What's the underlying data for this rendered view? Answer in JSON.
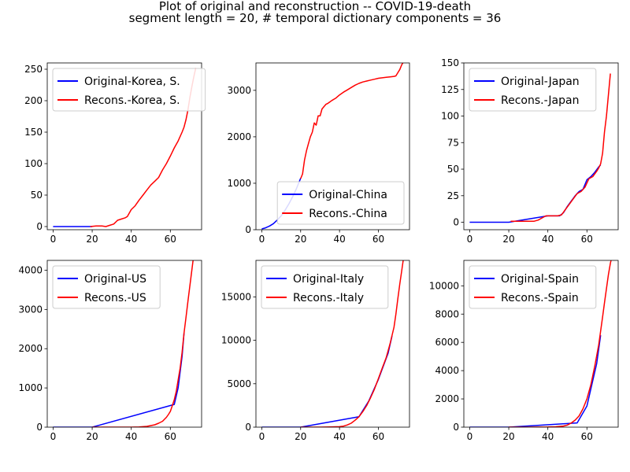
{
  "figure": {
    "title": "Plot of original and reconstruction -- COVID-19-death",
    "subtitle": "segment length = 20, # temporal dictionary components = 36"
  },
  "colors": {
    "original": "#0000ff",
    "reconstruction": "#ff0000"
  },
  "chart_data": [
    {
      "type": "line",
      "country": "Korea, S.",
      "xlim": [
        -3,
        76
      ],
      "ylim": [
        -5,
        260
      ],
      "xticks": [
        0,
        20,
        40,
        60
      ],
      "yticks": [
        0,
        50,
        100,
        150,
        200,
        250
      ],
      "legend_location": "upper-left",
      "series": [
        {
          "name": "Original-Korea, S.",
          "role": "original",
          "x": [
            0,
            5,
            10,
            15,
            20
          ],
          "y": [
            0,
            0,
            0,
            0,
            0
          ]
        },
        {
          "name": "Recons.-Korea, S.",
          "role": "reconstruction",
          "x": [
            19,
            22,
            25,
            27,
            29,
            31,
            33,
            35,
            37,
            38,
            40,
            42,
            44,
            46,
            48,
            50,
            52,
            54,
            56,
            58,
            60,
            62,
            64,
            66,
            67,
            68,
            69,
            70,
            71,
            72,
            73
          ],
          "y": [
            0,
            1,
            1,
            0,
            2,
            4,
            10,
            12,
            14,
            16,
            27,
            33,
            42,
            50,
            58,
            66,
            72,
            78,
            90,
            100,
            112,
            125,
            136,
            150,
            158,
            170,
            185,
            205,
            222,
            238,
            252
          ]
        }
      ]
    },
    {
      "type": "line",
      "country": "China",
      "xlim": [
        -3,
        76
      ],
      "ylim": [
        0,
        3590
      ],
      "xticks": [
        0,
        20,
        40,
        60
      ],
      "yticks": [
        0,
        1000,
        2000,
        3000
      ],
      "legend_location": "lower-right",
      "series": [
        {
          "name": "Original-China",
          "role": "original",
          "x": [
            0,
            2,
            4,
            6,
            8,
            10,
            12,
            14,
            16,
            18,
            20
          ],
          "y": [
            17,
            40,
            80,
            130,
            210,
            300,
            420,
            560,
            720,
            900,
            1110
          ]
        },
        {
          "name": "Recons.-China",
          "role": "reconstruction",
          "x": [
            20,
            21,
            22,
            23,
            24,
            25,
            26,
            27,
            28,
            29,
            30,
            31,
            32,
            33,
            34,
            35,
            36,
            38,
            40,
            42,
            44,
            46,
            48,
            50,
            52,
            54,
            56,
            58,
            60,
            62,
            64,
            66,
            68,
            69,
            70,
            71,
            72,
            73
          ],
          "y": [
            1100,
            1200,
            1500,
            1700,
            1850,
            2000,
            2100,
            2300,
            2250,
            2450,
            2450,
            2600,
            2650,
            2700,
            2720,
            2750,
            2780,
            2830,
            2900,
            2960,
            3010,
            3060,
            3110,
            3150,
            3180,
            3200,
            3220,
            3240,
            3260,
            3270,
            3280,
            3290,
            3300,
            3310,
            3380,
            3450,
            3550,
            3620
          ]
        }
      ]
    },
    {
      "type": "line",
      "country": "Japan",
      "xlim": [
        -3,
        76
      ],
      "ylim": [
        -7,
        150
      ],
      "xticks": [
        0,
        20,
        40,
        60
      ],
      "yticks": [
        0,
        25,
        50,
        75,
        100,
        125,
        150
      ],
      "legend_location": "upper-left",
      "series": [
        {
          "name": "Original-Japan",
          "role": "original",
          "x": [
            0,
            5,
            10,
            15,
            20,
            40,
            42,
            44,
            46,
            48,
            50,
            52,
            54,
            56,
            58,
            60,
            62,
            64,
            66,
            67
          ],
          "y": [
            0,
            0,
            0,
            0,
            0,
            6,
            6,
            6,
            6,
            9,
            15,
            20,
            25,
            29,
            31,
            40,
            43,
            47,
            52,
            54
          ]
        },
        {
          "name": "Recons.-Japan",
          "role": "reconstruction",
          "x": [
            21,
            23,
            25,
            28,
            31,
            33,
            35,
            37,
            39,
            41,
            43,
            45,
            47,
            49,
            51,
            53,
            55,
            57,
            59,
            61,
            63,
            65,
            66,
            67,
            68,
            69,
            70,
            71,
            72
          ],
          "y": [
            1,
            1,
            1,
            1,
            1,
            1,
            2,
            4,
            6,
            6,
            6,
            6,
            7,
            12,
            17,
            22,
            27,
            29,
            33,
            41,
            43,
            48,
            51,
            55,
            65,
            85,
            100,
            120,
            140
          ]
        }
      ]
    },
    {
      "type": "line",
      "country": "US",
      "xlim": [
        -3,
        76
      ],
      "ylim": [
        0,
        4250
      ],
      "xticks": [
        0,
        20,
        40,
        60
      ],
      "yticks": [
        0,
        1000,
        2000,
        3000,
        4000
      ],
      "legend_location": "upper-left",
      "series": [
        {
          "name": "Original-US",
          "role": "original",
          "x": [
            0,
            5,
            10,
            15,
            20,
            62,
            64,
            66,
            67
          ],
          "y": [
            0,
            0,
            0,
            0,
            0,
            580,
            1000,
            1800,
            2400
          ]
        },
        {
          "name": "Recons.-US",
          "role": "reconstruction",
          "x": [
            20,
            30,
            40,
            44,
            48,
            50,
            52,
            54,
            56,
            58,
            59,
            60,
            61,
            62,
            63,
            64,
            65,
            66,
            67,
            68,
            69,
            70,
            71,
            72,
            73
          ],
          "y": [
            0,
            0,
            1,
            5,
            20,
            40,
            60,
            100,
            150,
            250,
            320,
            400,
            550,
            700,
            900,
            1200,
            1500,
            1900,
            2400,
            2800,
            3200,
            3600,
            4000,
            4400,
            4800
          ]
        }
      ]
    },
    {
      "type": "line",
      "country": "Italy",
      "xlim": [
        -3,
        76
      ],
      "ylim": [
        0,
        19200
      ],
      "xticks": [
        0,
        20,
        40,
        60
      ],
      "yticks": [
        0,
        5000,
        10000,
        15000
      ],
      "legend_location": "upper-left",
      "series": [
        {
          "name": "Original-Italy",
          "role": "original",
          "x": [
            0,
            5,
            10,
            15,
            20,
            50,
            55,
            60,
            65,
            67
          ],
          "y": [
            0,
            0,
            0,
            0,
            0,
            1200,
            3000,
            5500,
            8500,
            10500
          ]
        },
        {
          "name": "Recons.-Italy",
          "role": "reconstruction",
          "x": [
            20,
            30,
            35,
            40,
            42,
            44,
            46,
            48,
            50,
            52,
            54,
            56,
            58,
            60,
            62,
            64,
            66,
            68,
            69,
            70,
            71,
            72,
            73
          ],
          "y": [
            0,
            0,
            20,
            50,
            120,
            250,
            450,
            800,
            1200,
            1800,
            2500,
            3400,
            4400,
            5600,
            6800,
            8000,
            9600,
            11500,
            13000,
            14800,
            16500,
            18000,
            19600
          ]
        }
      ]
    },
    {
      "type": "line",
      "country": "Spain",
      "xlim": [
        -3,
        76
      ],
      "ylim": [
        0,
        11800
      ],
      "xticks": [
        0,
        20,
        40,
        60
      ],
      "yticks": [
        0,
        2000,
        4000,
        6000,
        8000,
        10000
      ],
      "legend_location": "upper-left",
      "series": [
        {
          "name": "Original-Spain",
          "role": "original",
          "x": [
            0,
            5,
            10,
            15,
            20,
            55,
            60,
            65,
            67
          ],
          "y": [
            0,
            0,
            0,
            0,
            0,
            300,
            1500,
            4500,
            6500
          ]
        },
        {
          "name": "Recons.-Spain",
          "role": "reconstruction",
          "x": [
            20,
            30,
            40,
            44,
            48,
            50,
            52,
            54,
            56,
            58,
            60,
            62,
            64,
            66,
            68,
            69,
            70,
            71,
            72,
            73
          ],
          "y": [
            0,
            0,
            10,
            30,
            80,
            150,
            300,
            500,
            800,
            1300,
            2000,
            3000,
            4300,
            5800,
            7800,
            8800,
            9800,
            10800,
            11600,
            12200
          ]
        }
      ]
    }
  ]
}
